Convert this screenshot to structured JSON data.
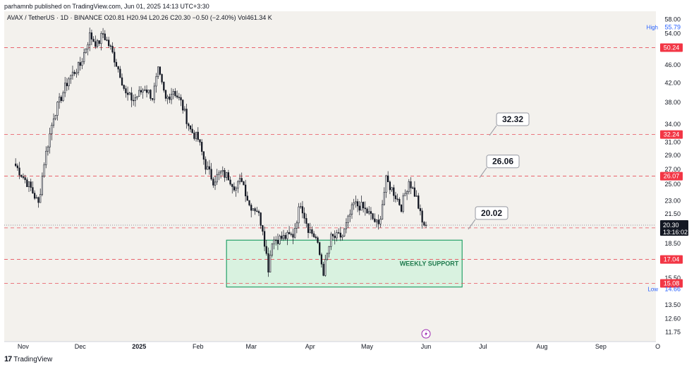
{
  "header": {
    "published": "parhamnb published on TradingView.com, Jun 01, 2025 14:13 UTC+3:30"
  },
  "footer": {
    "brand": "TradingView",
    "logo_glyph": "17"
  },
  "colors": {
    "background": "#f3f1ed",
    "candle": "#131722",
    "level_line": "#e8505b",
    "label_red": "#f23645",
    "support_fill": "#d9f2e0",
    "support_border": "#26a269",
    "support_text": "#1f7a4d",
    "price_label_bg": "#131722",
    "axis_text": "#131722",
    "high_low_text": "#2962ff"
  },
  "chart_data": {
    "type": "candlestick",
    "title": "AVAX / TetherUS · 1D · BINANCE",
    "ohlc_label": "O20.81 H20.94 L20.26 C20.30 −0.50 (−2.40%) Vol461.34 K",
    "y_scale": "log",
    "ylim": [
      11.2,
      60.5
    ],
    "y_ticks": [
      58.0,
      54.0,
      50.0,
      46.0,
      42.0,
      38.0,
      34.0,
      31.0,
      29.0,
      27.0,
      25.0,
      23.0,
      21.5,
      18.5,
      15.5,
      13.5,
      12.6,
      11.75
    ],
    "x_ticks": [
      {
        "label": "Nov",
        "index": 4
      },
      {
        "label": "Dec",
        "index": 34
      },
      {
        "label": "2025",
        "index": 65
      },
      {
        "label": "Feb",
        "index": 96
      },
      {
        "label": "Mar",
        "index": 124
      },
      {
        "label": "Apr",
        "index": 155
      },
      {
        "label": "May",
        "index": 185
      },
      {
        "label": "Jun",
        "index": 216
      },
      {
        "label": "Jul",
        "index": 246
      },
      {
        "label": "Aug",
        "index": 277
      },
      {
        "label": "Sep",
        "index": 308
      },
      {
        "label": "O",
        "index": 338
      }
    ],
    "x_index_range": [
      -6,
      337
    ],
    "levels": [
      {
        "value": 50.24,
        "label": "50.24"
      },
      {
        "value": 32.24,
        "label": "32.24"
      },
      {
        "value": 26.07,
        "label": "26.07"
      },
      {
        "value": 20.02,
        "label": "20.02"
      },
      {
        "value": 17.04,
        "label": "17.04"
      },
      {
        "value": 15.08,
        "label": "15.08"
      }
    ],
    "callouts": [
      {
        "text": "32.32",
        "value": 32.32
      },
      {
        "text": "26.06",
        "value": 26.06
      },
      {
        "text": "20.02",
        "value": 20.02
      }
    ],
    "support_zone": {
      "label": "WEEKLY SUPPORT",
      "top": 18.8,
      "bottom": 14.8,
      "start_index": 111,
      "end_index": 235
    },
    "last_price": {
      "value": "20.30",
      "countdown": "13:16:02"
    },
    "high": {
      "label": "High",
      "value": "55.79"
    },
    "low": {
      "label": "Low",
      "value": "14.66"
    },
    "key_points": [
      [
        0,
        27.5
      ],
      [
        8,
        24.5
      ],
      [
        12,
        22.6
      ],
      [
        15,
        28.0
      ],
      [
        20,
        35.5
      ],
      [
        28,
        43.0
      ],
      [
        34,
        46.0
      ],
      [
        39,
        53.5
      ],
      [
        43,
        51.0
      ],
      [
        46,
        54.0
      ],
      [
        50,
        50.0
      ],
      [
        55,
        44.0
      ],
      [
        58,
        39.5
      ],
      [
        62,
        38.5
      ],
      [
        68,
        41.0
      ],
      [
        72,
        39.0
      ],
      [
        75,
        44.5
      ],
      [
        79,
        38.5
      ],
      [
        83,
        40.5
      ],
      [
        87,
        38.0
      ],
      [
        92,
        33.0
      ],
      [
        96,
        31.5
      ],
      [
        100,
        27.5
      ],
      [
        104,
        25.5
      ],
      [
        108,
        26.5
      ],
      [
        112,
        26.0
      ],
      [
        116,
        24.5
      ],
      [
        119,
        25.8
      ],
      [
        123,
        22.5
      ],
      [
        127,
        22.0
      ],
      [
        130,
        20.0
      ],
      [
        133,
        16.3
      ],
      [
        135,
        18.8
      ],
      [
        140,
        19.0
      ],
      [
        146,
        19.3
      ],
      [
        150,
        22.8
      ],
      [
        154,
        20.0
      ],
      [
        158,
        19.0
      ],
      [
        162,
        16.0
      ],
      [
        166,
        19.0
      ],
      [
        172,
        19.2
      ],
      [
        178,
        22.6
      ],
      [
        182,
        22.3
      ],
      [
        186,
        21.5
      ],
      [
        191,
        20.2
      ],
      [
        195,
        25.5
      ],
      [
        199,
        24.0
      ],
      [
        203,
        22.3
      ],
      [
        207,
        25.5
      ],
      [
        211,
        23.3
      ],
      [
        214,
        20.5
      ],
      [
        216,
        20.3
      ]
    ]
  }
}
